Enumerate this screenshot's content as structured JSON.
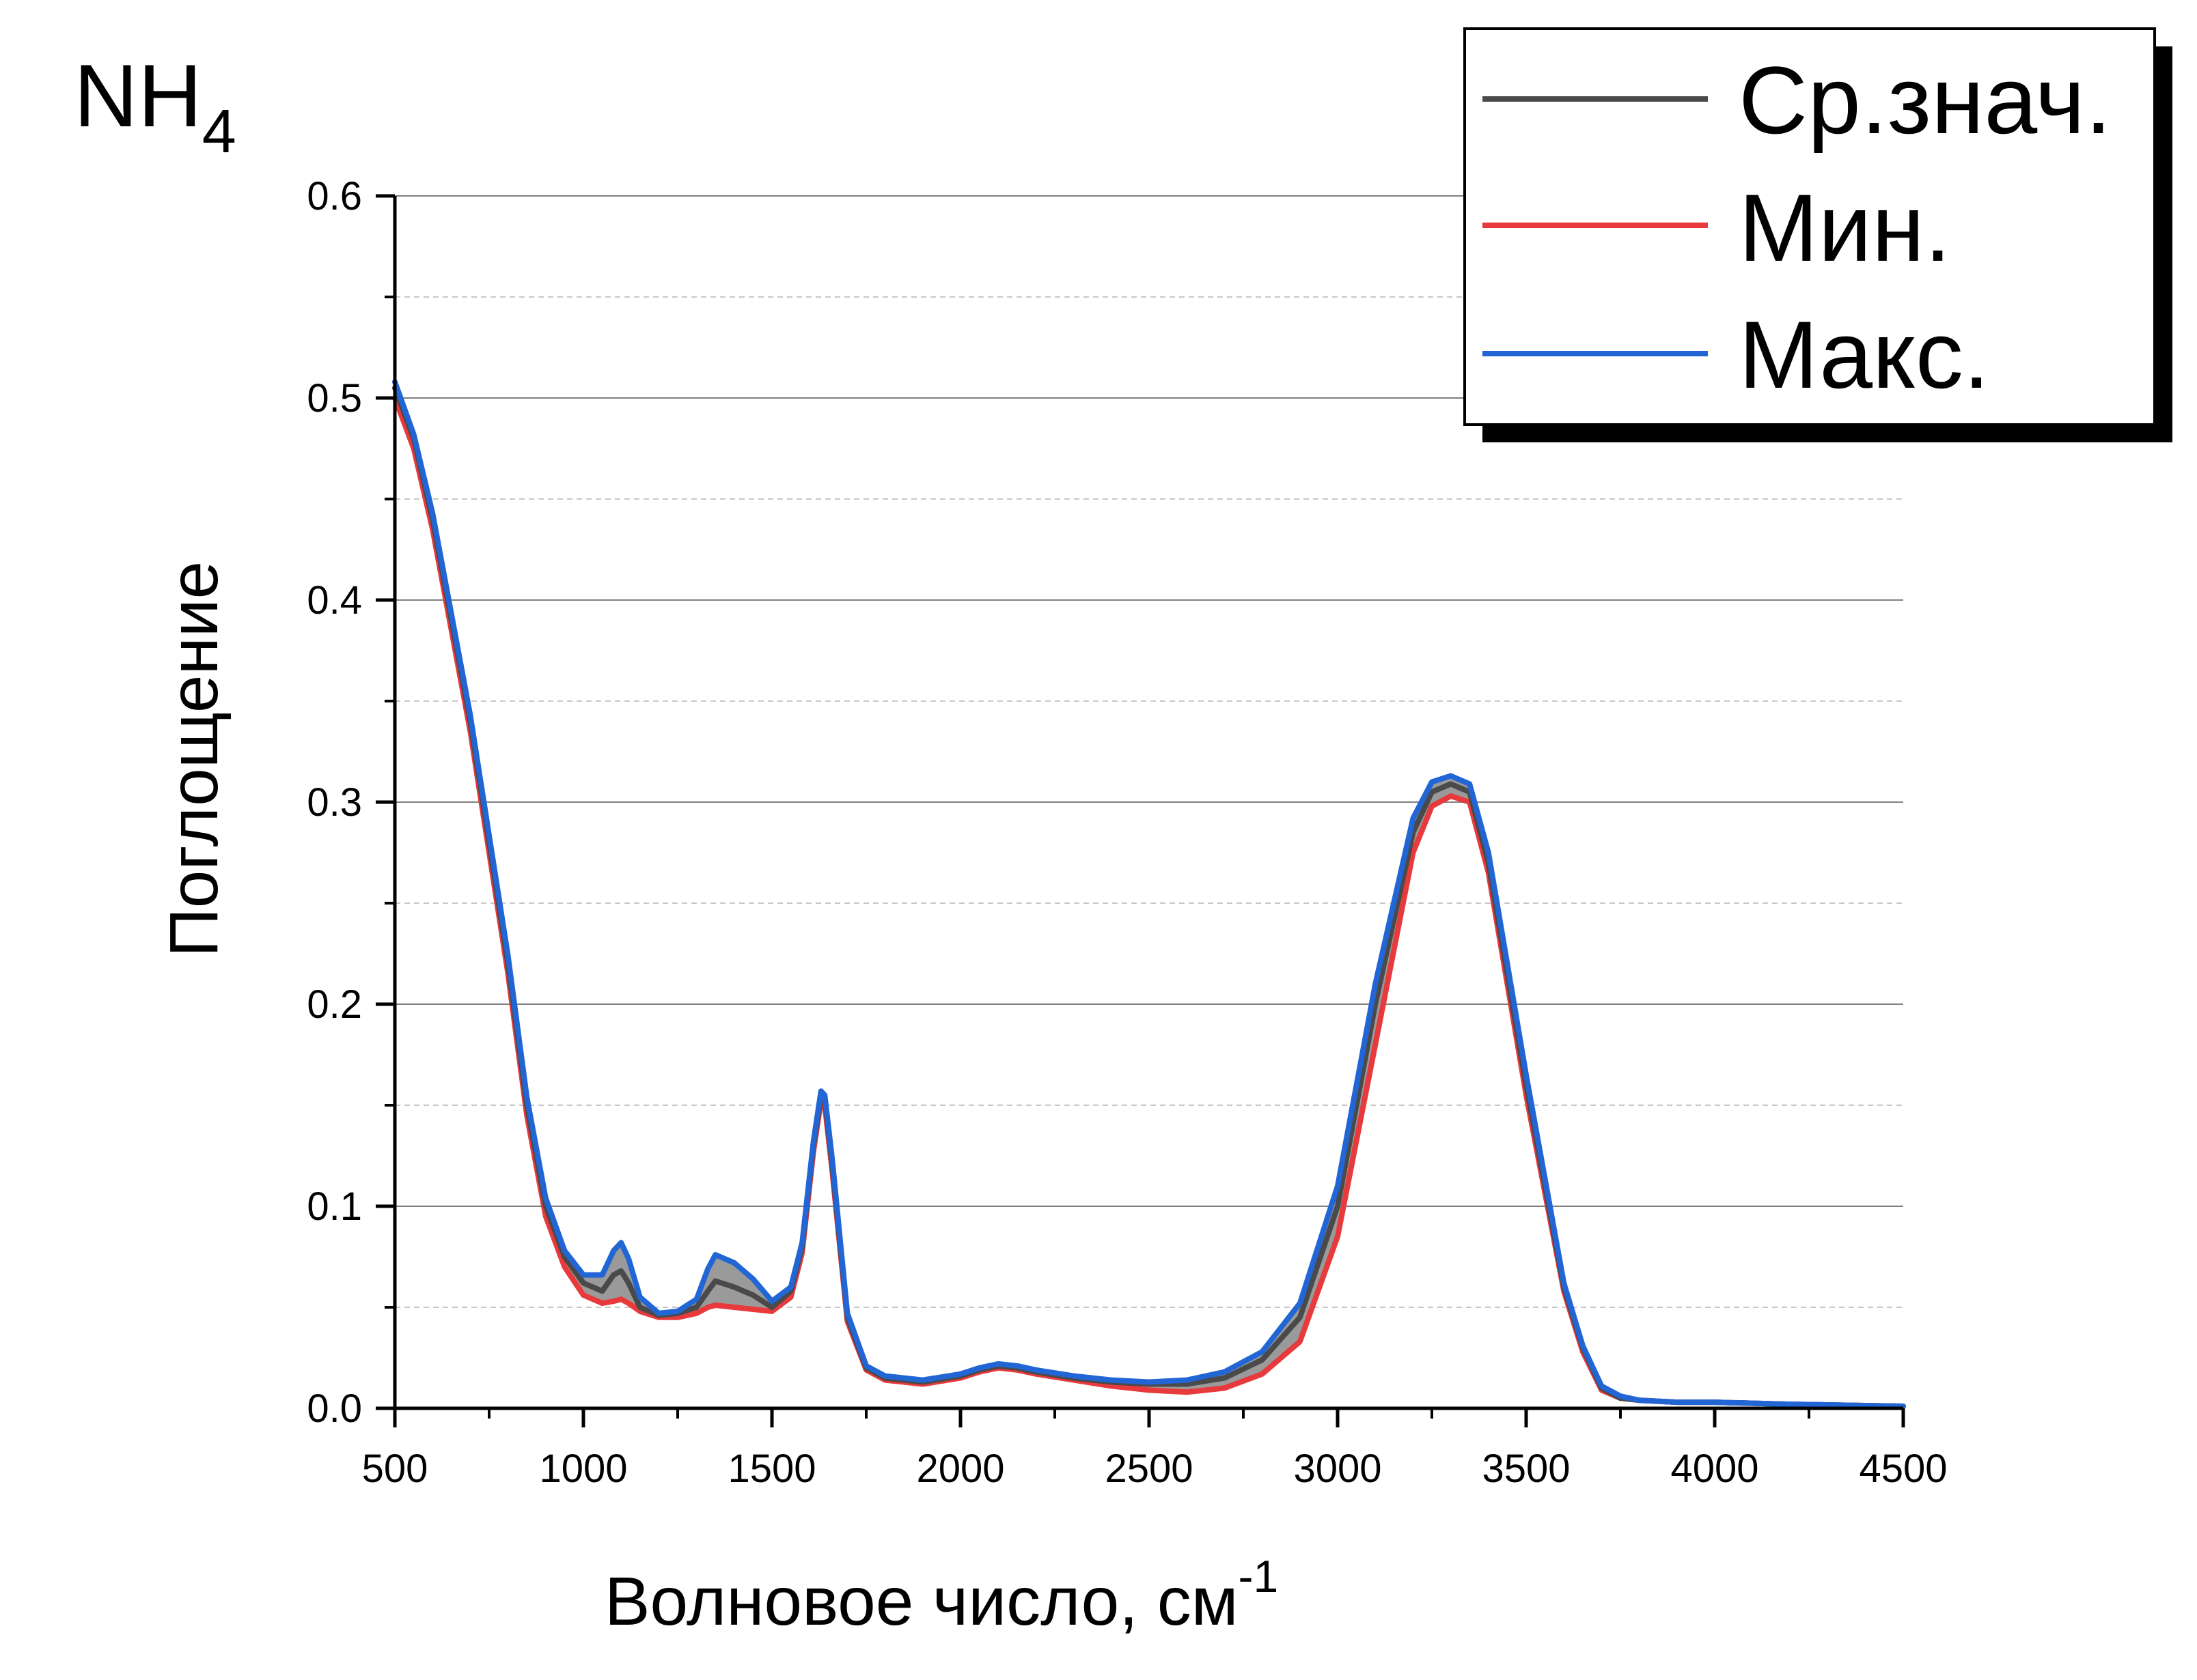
{
  "panel_label": {
    "main": "NH",
    "sub": "4"
  },
  "colors": {
    "mean": "#4a4a4a",
    "min": "#e8393c",
    "max": "#2266d6",
    "band": "#9a9a9a",
    "grid_major": "#808080",
    "grid_minor": "#c8c8c8"
  },
  "chart_data": {
    "type": "line",
    "title": "",
    "xlabel": {
      "main": "Волновое число, см",
      "sup": "-1"
    },
    "ylabel": "Поглощение",
    "xlim": [
      500,
      4500
    ],
    "ylim": [
      0,
      0.6
    ],
    "xticks": [
      500,
      1000,
      1500,
      2000,
      2500,
      3000,
      3500,
      4000,
      4500
    ],
    "xtick_labels": [
      "500",
      "1000",
      "1500",
      "2000",
      "2500",
      "3000",
      "3500",
      "4000",
      "4500"
    ],
    "yticks": [
      0,
      0.1,
      0.2,
      0.3,
      0.4,
      0.5,
      0.6
    ],
    "ytick_labels": [
      "0.0",
      "0.1",
      "0.2",
      "0.3",
      "0.4",
      "0.5",
      "0.6"
    ],
    "grid": "major solid, minor dashed (horizontal)",
    "legend_position": "top-right",
    "shaded_band_between": [
      "Мин.",
      "Макс."
    ],
    "series": [
      {
        "name": "Ср.знач.",
        "color": "#4a4a4a",
        "x": [
          500,
          550,
          600,
          700,
          800,
          850,
          900,
          950,
          1000,
          1050,
          1080,
          1100,
          1120,
          1150,
          1200,
          1250,
          1300,
          1330,
          1350,
          1400,
          1450,
          1500,
          1550,
          1580,
          1610,
          1630,
          1640,
          1660,
          1700,
          1750,
          1800,
          1900,
          2000,
          2050,
          2100,
          2150,
          2200,
          2300,
          2400,
          2500,
          2600,
          2700,
          2800,
          2900,
          3000,
          3100,
          3200,
          3250,
          3300,
          3350,
          3400,
          3500,
          3600,
          3650,
          3700,
          3750,
          3800,
          3900,
          4000,
          4200,
          4500
        ],
        "y": [
          0.505,
          0.48,
          0.44,
          0.34,
          0.22,
          0.15,
          0.1,
          0.075,
          0.062,
          0.058,
          0.066,
          0.068,
          0.062,
          0.05,
          0.046,
          0.047,
          0.05,
          0.058,
          0.063,
          0.06,
          0.056,
          0.05,
          0.058,
          0.08,
          0.13,
          0.155,
          0.153,
          0.12,
          0.045,
          0.02,
          0.015,
          0.013,
          0.016,
          0.019,
          0.021,
          0.02,
          0.018,
          0.015,
          0.013,
          0.012,
          0.012,
          0.015,
          0.024,
          0.045,
          0.1,
          0.2,
          0.285,
          0.305,
          0.309,
          0.305,
          0.27,
          0.16,
          0.06,
          0.03,
          0.01,
          0.005,
          0.004,
          0.003,
          0.003,
          0.002,
          0.001
        ]
      },
      {
        "name": "Мин.",
        "color": "#e8393c",
        "x": [
          500,
          550,
          600,
          700,
          800,
          850,
          900,
          950,
          1000,
          1050,
          1080,
          1100,
          1120,
          1150,
          1200,
          1250,
          1300,
          1330,
          1350,
          1400,
          1450,
          1500,
          1550,
          1580,
          1610,
          1630,
          1640,
          1660,
          1700,
          1750,
          1800,
          1900,
          2000,
          2050,
          2100,
          2150,
          2200,
          2300,
          2400,
          2500,
          2600,
          2700,
          2800,
          2900,
          3000,
          3100,
          3200,
          3250,
          3300,
          3350,
          3400,
          3500,
          3600,
          3650,
          3700,
          3750,
          3800,
          3900,
          4000,
          4200,
          4500
        ],
        "y": [
          0.5,
          0.475,
          0.435,
          0.335,
          0.215,
          0.145,
          0.095,
          0.07,
          0.056,
          0.052,
          0.053,
          0.054,
          0.052,
          0.048,
          0.045,
          0.045,
          0.047,
          0.05,
          0.051,
          0.05,
          0.049,
          0.048,
          0.055,
          0.077,
          0.127,
          0.152,
          0.15,
          0.117,
          0.043,
          0.019,
          0.014,
          0.012,
          0.015,
          0.018,
          0.02,
          0.019,
          0.017,
          0.014,
          0.011,
          0.009,
          0.008,
          0.01,
          0.017,
          0.033,
          0.085,
          0.18,
          0.275,
          0.298,
          0.303,
          0.3,
          0.265,
          0.155,
          0.058,
          0.028,
          0.009,
          0.005,
          0.004,
          0.003,
          0.003,
          0.002,
          0.001
        ]
      },
      {
        "name": "Макс.",
        "color": "#2266d6",
        "x": [
          500,
          550,
          600,
          700,
          800,
          850,
          900,
          950,
          1000,
          1050,
          1080,
          1100,
          1120,
          1150,
          1200,
          1250,
          1300,
          1330,
          1350,
          1400,
          1450,
          1500,
          1550,
          1580,
          1610,
          1630,
          1640,
          1660,
          1700,
          1750,
          1800,
          1900,
          2000,
          2050,
          2100,
          2150,
          2200,
          2300,
          2400,
          2500,
          2600,
          2700,
          2800,
          2900,
          3000,
          3100,
          3200,
          3250,
          3300,
          3350,
          3400,
          3500,
          3600,
          3650,
          3700,
          3750,
          3800,
          3900,
          4000,
          4200,
          4500
        ],
        "y": [
          0.508,
          0.482,
          0.443,
          0.343,
          0.224,
          0.154,
          0.104,
          0.078,
          0.066,
          0.066,
          0.078,
          0.082,
          0.074,
          0.055,
          0.047,
          0.048,
          0.054,
          0.069,
          0.076,
          0.072,
          0.064,
          0.053,
          0.06,
          0.082,
          0.132,
          0.157,
          0.155,
          0.123,
          0.047,
          0.021,
          0.016,
          0.014,
          0.017,
          0.02,
          0.022,
          0.021,
          0.019,
          0.016,
          0.014,
          0.013,
          0.014,
          0.018,
          0.028,
          0.052,
          0.11,
          0.21,
          0.292,
          0.31,
          0.313,
          0.309,
          0.275,
          0.165,
          0.062,
          0.031,
          0.011,
          0.006,
          0.004,
          0.003,
          0.003,
          0.002,
          0.001
        ]
      }
    ]
  }
}
